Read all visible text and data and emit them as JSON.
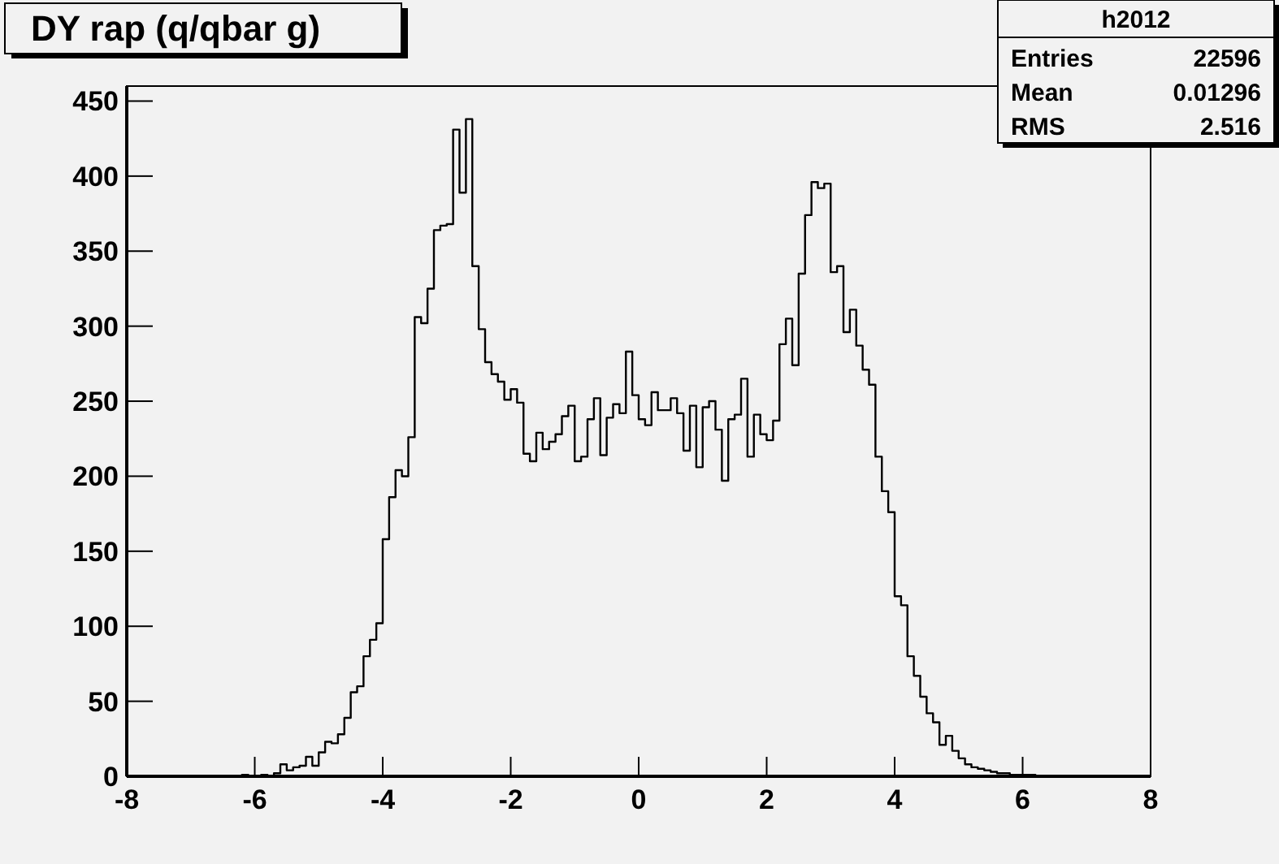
{
  "chart_data": {
    "type": "histogram",
    "title": "DY rap (q/qbar g)",
    "bins": [
      -8,
      -7.9,
      -7.8,
      -7.7,
      -7.6,
      -7.5,
      -7.4,
      -7.3,
      -7.2,
      -7.1,
      -7,
      -6.9,
      -6.8,
      -6.7,
      -6.6,
      -6.5,
      -6.4,
      -6.3,
      -6.2,
      -6.1,
      -6,
      -5.9,
      -5.8,
      -5.7,
      -5.6,
      -5.5,
      -5.4,
      -5.3,
      -5.2,
      -5.1,
      -5,
      -4.9,
      -4.8,
      -4.7,
      -4.6,
      -4.5,
      -4.4,
      -4.3,
      -4.2,
      -4.1,
      -4,
      -3.9,
      -3.8,
      -3.7,
      -3.6,
      -3.5,
      -3.4,
      -3.3,
      -3.2,
      -3.1,
      -3,
      -2.9,
      -2.8,
      -2.7,
      -2.6,
      -2.5,
      -2.4,
      -2.3,
      -2.2,
      -2.1,
      -2,
      -1.9,
      -1.8,
      -1.7,
      -1.6,
      -1.5,
      -1.4,
      -1.3,
      -1.2,
      -1.1,
      -1,
      -0.9,
      -0.8,
      -0.7,
      -0.6,
      -0.5,
      -0.4,
      -0.3,
      -0.2,
      -0.1,
      0,
      0.1,
      0.2,
      0.3,
      0.4,
      0.5,
      0.6,
      0.7,
      0.8,
      0.9,
      1,
      1.1,
      1.2,
      1.3,
      1.4,
      1.5,
      1.6,
      1.7,
      1.8,
      1.9,
      2,
      2.1,
      2.2,
      2.3,
      2.4,
      2.5,
      2.6,
      2.7,
      2.8,
      2.9,
      3,
      3.1,
      3.2,
      3.3,
      3.4,
      3.5,
      3.6,
      3.7,
      3.8,
      3.9,
      4,
      4.1,
      4.2,
      4.3,
      4.4,
      4.5,
      4.6,
      4.7,
      4.8,
      4.9,
      5,
      5.1,
      5.2,
      5.3,
      5.4,
      5.5,
      5.6,
      5.7,
      5.8,
      5.9,
      6,
      6.1,
      6.2,
      6.3,
      6.4,
      6.5,
      6.6,
      6.7,
      6.8,
      6.9,
      7,
      7.1,
      7.2,
      7.3,
      7.4,
      7.5,
      7.6,
      7.7,
      7.8,
      7.9,
      8
    ],
    "values": [
      0,
      0,
      0,
      0,
      0,
      0,
      0,
      0,
      0,
      0,
      0,
      0,
      0,
      0,
      0,
      0,
      0,
      0,
      1,
      0,
      0,
      1,
      0,
      2,
      8,
      4,
      6,
      7,
      13,
      7,
      16,
      23,
      22,
      28,
      39,
      56,
      60,
      80,
      91,
      102,
      158,
      186,
      204,
      200,
      226,
      306,
      302,
      325,
      364,
      367,
      368,
      431,
      389,
      438,
      340,
      298,
      276,
      268,
      263,
      251,
      258,
      249,
      215,
      210,
      229,
      218,
      223,
      228,
      240,
      247,
      210,
      213,
      238,
      252,
      214,
      239,
      248,
      242,
      283,
      254,
      238,
      234,
      256,
      244,
      244,
      252,
      242,
      217,
      247,
      206,
      246,
      250,
      231,
      197,
      238,
      241,
      265,
      213,
      241,
      228,
      224,
      237,
      288,
      305,
      274,
      335,
      374,
      396,
      392,
      395,
      336,
      340,
      296,
      311,
      287,
      271,
      261,
      213,
      190,
      176,
      120,
      114,
      80,
      67,
      53,
      42,
      36,
      21,
      27,
      17,
      12,
      8,
      6,
      5,
      4,
      3,
      2,
      2,
      1,
      1,
      1,
      1,
      0,
      0,
      0,
      0,
      0,
      0,
      0,
      0,
      0,
      0,
      0,
      0,
      0,
      0,
      0,
      0,
      0,
      0
    ],
    "color": "#000000",
    "xlim": [
      -8,
      8
    ],
    "xticks": [
      -8,
      -6,
      -4,
      -2,
      0,
      2,
      4,
      6,
      8
    ],
    "ylim": [
      0,
      460
    ],
    "yticks": [
      0,
      50,
      100,
      150,
      200,
      250,
      300,
      350,
      400,
      450
    ],
    "grid": false,
    "annotations": [
      "h2012",
      "Entries",
      "22596",
      "Mean",
      "0.01296",
      "RMS",
      "2.516"
    ]
  }
}
